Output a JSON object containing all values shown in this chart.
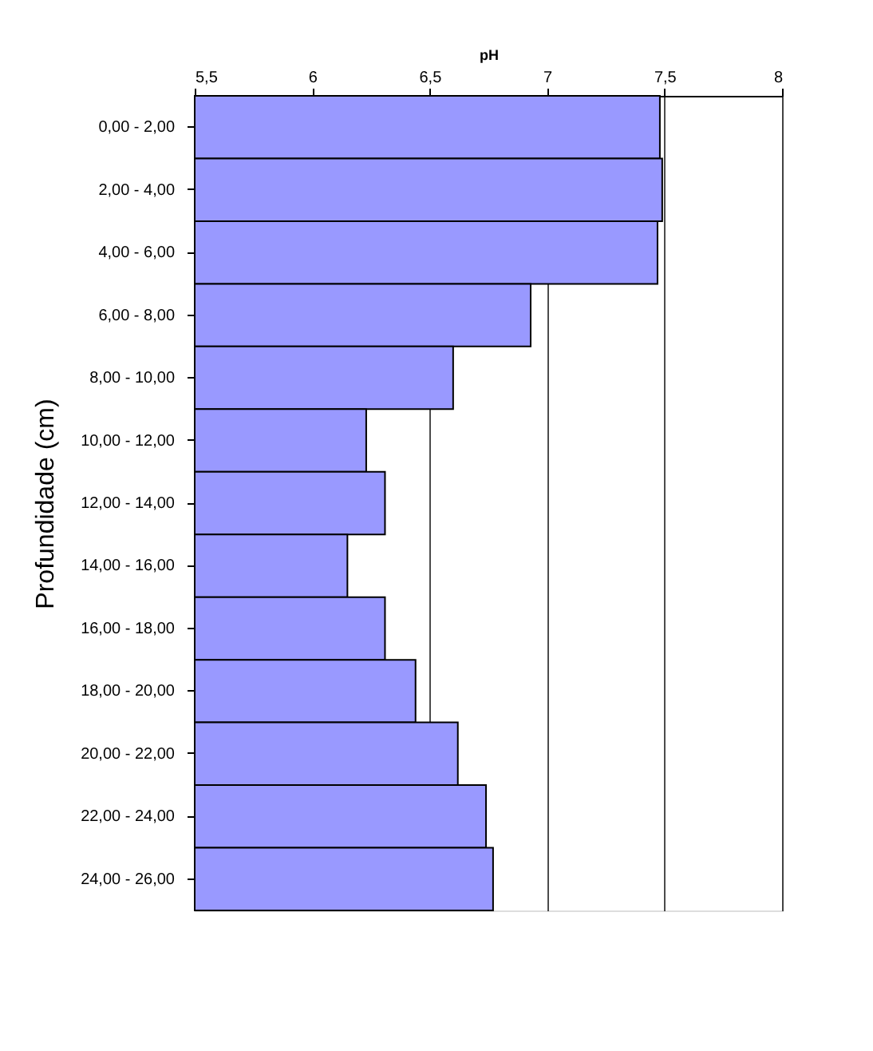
{
  "chart_data": {
    "type": "bar",
    "orientation": "horizontal",
    "xlabel": "pH",
    "ylabel": "Profundidade (cm)",
    "categories": [
      "0,00 - 2,00",
      "2,00 - 4,00",
      "4,00 - 6,00",
      "6,00 - 8,00",
      "8,00 - 10,00",
      "10,00 - 12,00",
      "12,00 - 14,00",
      "14,00 - 16,00",
      "16,00 - 18,00",
      "18,00 - 20,00",
      "20,00 - 22,00",
      "22,00 - 24,00",
      "24,00 - 26,00"
    ],
    "values": [
      7.48,
      7.49,
      7.47,
      6.93,
      6.6,
      6.23,
      6.31,
      6.15,
      6.31,
      6.44,
      6.62,
      6.74,
      6.77
    ],
    "color": "#9999ff",
    "xlim": [
      5.5,
      8
    ],
    "xticks": [
      {
        "value": 5.5,
        "label": "5,5"
      },
      6,
      {
        "value": 6.5,
        "label": "6,5"
      },
      7,
      {
        "value": 7.5,
        "label": "7,5"
      },
      8
    ],
    "grid": "x"
  }
}
